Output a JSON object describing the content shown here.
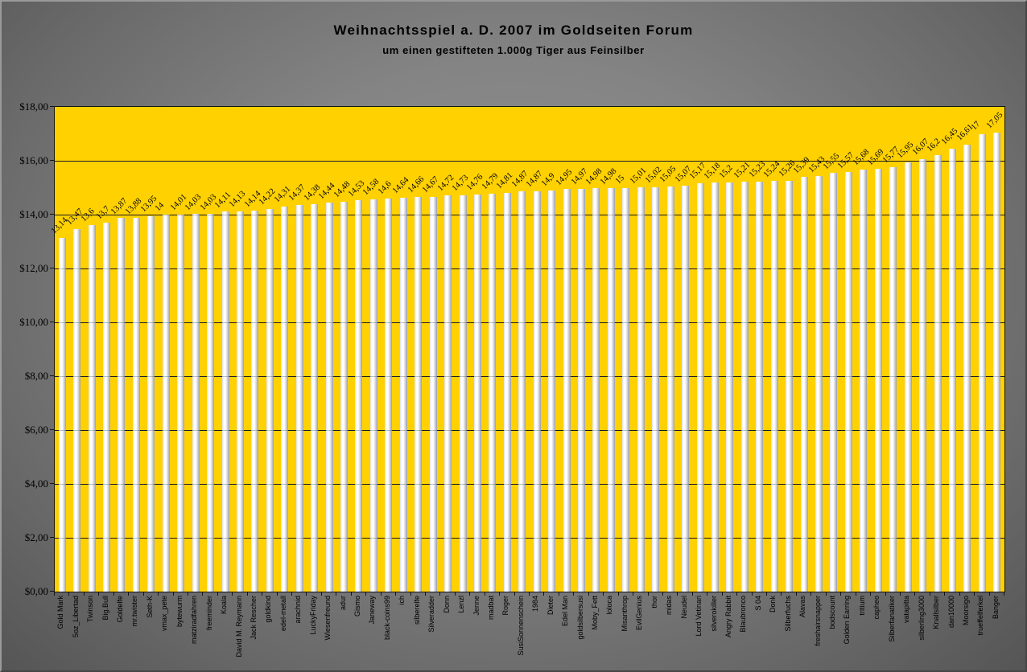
{
  "chart_data": {
    "type": "bar",
    "title": "Weihnachtsspiel a. D. 2007 im Goldseiten Forum",
    "subtitle": "um einen gestifteten 1.000g Tiger aus Feinsilber",
    "legend": "none",
    "grid": true,
    "ylim": [
      0,
      18
    ],
    "y_step": 2,
    "y_tick_labels": [
      "$18,00",
      "$16,00",
      "$14,00",
      "$12,00",
      "$10,00",
      "$8,00",
      "$6,00",
      "$4,00",
      "$2,00",
      "$0,00"
    ],
    "categories": [
      "Gold Mark",
      "5oz_Libertad",
      "Twinson",
      "Big.Bull",
      "Goldelfe",
      "mr.twister",
      "Seth-K",
      "vmax_pete",
      "bytewurm",
      "matziradfahren",
      "freeminder",
      "Koala",
      "David M. Reymann",
      "Jack Rescher",
      "goldkind",
      "edel-metall",
      "arachnid",
      "LuckyFriday",
      "Wiesenfreund",
      "adur",
      "Gismo",
      "Janeway",
      "black-coins99",
      "ich",
      "silberelfe",
      "Silveradder",
      "Donn",
      "Lenzl",
      "Jenne",
      "madbat",
      "Roger",
      "SusiSonnenschein",
      "1984",
      "Dieter",
      "Edel Man",
      "goldsilbersusi",
      "Moby_Fett",
      "loloca",
      "Misanthrop",
      "EvilGenius",
      "thor",
      "midas",
      "Neudel",
      "Lord Vetinari",
      "silverokiller",
      "Angry Rabbit",
      "Blaubronco",
      "S 04",
      "Donk",
      "Silberfuchs",
      "Alavas",
      "freshairsnapper",
      "bodscount",
      "Golden Earring",
      "tritium",
      "capheo",
      "Silberfanatiker",
      "vatapitta",
      "silberling3000",
      "Knallsilber",
      "dan10000",
      "Moorsigo",
      "trueffelferkel",
      "Banger"
    ],
    "values": [
      13.14,
      13.47,
      13.6,
      13.7,
      13.87,
      13.88,
      13.95,
      14,
      14.01,
      14.03,
      14.03,
      14.11,
      14.13,
      14.14,
      14.22,
      14.31,
      14.37,
      14.38,
      14.44,
      14.48,
      14.53,
      14.58,
      14.6,
      14.64,
      14.66,
      14.67,
      14.72,
      14.73,
      14.76,
      14.79,
      14.81,
      14.87,
      14.87,
      14.9,
      14.95,
      14.97,
      14.98,
      14.98,
      15,
      15.01,
      15.02,
      15.05,
      15.07,
      15.17,
      15.18,
      15.2,
      15.21,
      15.23,
      15.24,
      15.26,
      15.39,
      15.43,
      15.55,
      15.57,
      15.68,
      15.69,
      15.77,
      15.95,
      16.07,
      16.2,
      16.45,
      16.61,
      17,
      17.05
    ],
    "value_labels": [
      "13,14",
      "13,47",
      "13,6",
      "13,7",
      "13,87",
      "13,88",
      "13,95",
      "14",
      "14,01",
      "14,03",
      "14,03",
      "14,11",
      "14,13",
      "14,14",
      "14,22",
      "14,31",
      "14,37",
      "14,38",
      "14,44",
      "14,48",
      "14,53",
      "14,58",
      "14,6",
      "14,64",
      "14,66",
      "14,67",
      "14,72",
      "14,73",
      "14,76",
      "14,79",
      "14,81",
      "14,87",
      "14,87",
      "14,9",
      "14,95",
      "14,97",
      "14,98",
      "14,98",
      "15",
      "15,01",
      "15,02",
      "15,05",
      "15,07",
      "15,17",
      "15,18",
      "15,2",
      "15,21",
      "15,23",
      "15,24",
      "15,26",
      "15,39",
      "15,43",
      "15,55",
      "15,57",
      "15,68",
      "15,69",
      "15,77",
      "15,95",
      "16,07",
      "16,2",
      "16,45",
      "16,61",
      "17",
      "17,05"
    ],
    "colors": {
      "plot_bg": "#FFD100",
      "bar_light": "#ffffff",
      "bar_dark": "#9b9da6",
      "gridline": "#1c1c1c",
      "text": "#000000",
      "chart_bg_center": "#939393",
      "chart_bg_edge": "#555555"
    }
  }
}
